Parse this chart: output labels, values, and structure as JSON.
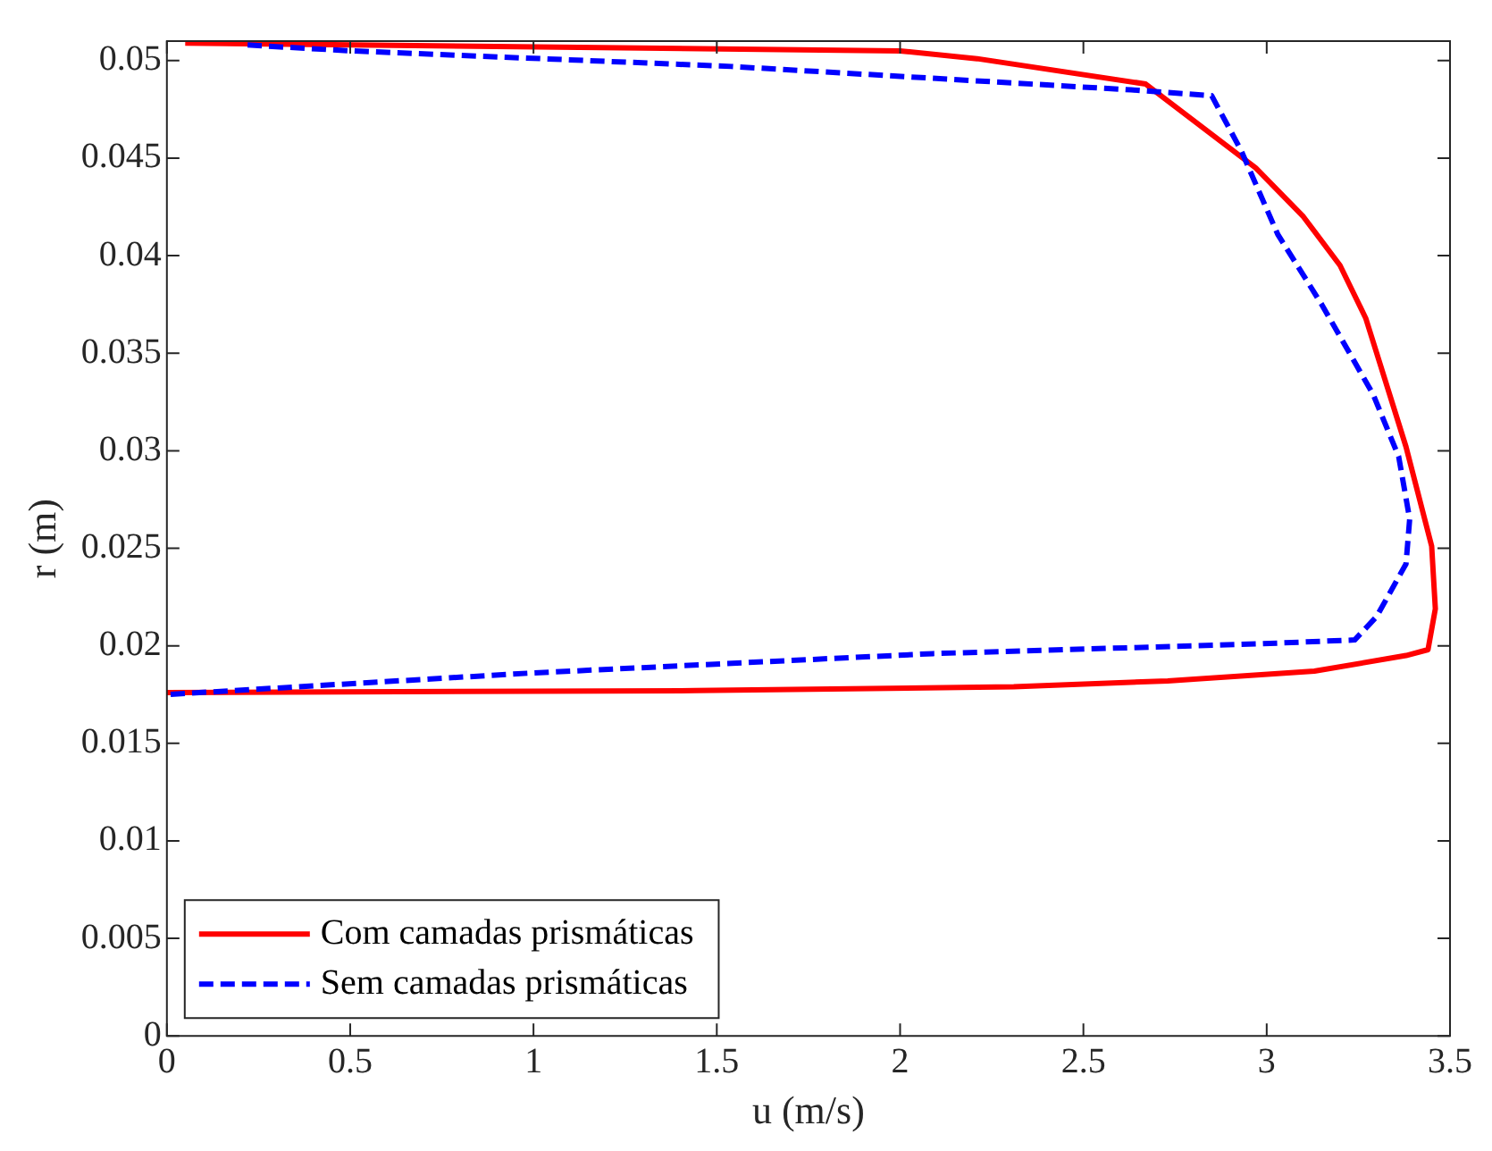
{
  "chart_data": {
    "type": "line",
    "xlabel": "u (m/s)",
    "ylabel": "r (m)",
    "xlim": [
      0,
      3.5
    ],
    "ylim": [
      0,
      0.051
    ],
    "xticks": [
      0,
      0.5,
      1,
      1.5,
      2,
      2.5,
      3,
      3.5
    ],
    "yticks": [
      0,
      0.005,
      0.01,
      0.015,
      0.02,
      0.025,
      0.03,
      0.035,
      0.04,
      0.045,
      0.05
    ],
    "grid": false,
    "legend": "bottom left",
    "series": [
      {
        "name": "Com camadas prismáticas",
        "color": "#ff0000",
        "line_style": "solid",
        "x": [
          0.05,
          2.0,
          2.21,
          2.67,
          2.97,
          3.1,
          3.2,
          3.27,
          3.38,
          3.45,
          3.46,
          3.44,
          3.38,
          3.13,
          2.73,
          2.31,
          1.44,
          0
        ],
        "values": [
          0.0509,
          0.0505,
          0.0501,
          0.0488,
          0.0445,
          0.042,
          0.0395,
          0.0368,
          0.0302,
          0.0251,
          0.0219,
          0.0198,
          0.0195,
          0.0187,
          0.0182,
          0.0179,
          0.0177,
          0.0176
        ]
      },
      {
        "name": "Sem camadas prismáticas",
        "color": "#0000ff",
        "line_style": "dashed",
        "x": [
          0.22,
          0.5,
          1.54,
          2.63,
          2.85,
          2.93,
          3.03,
          3.15,
          3.29,
          3.36,
          3.39,
          3.38,
          3.3,
          3.24,
          2.98,
          2.09,
          0.99,
          0
        ],
        "values": [
          0.0508,
          0.0505,
          0.0497,
          0.0485,
          0.0482,
          0.0454,
          0.0411,
          0.0375,
          0.0329,
          0.0297,
          0.0265,
          0.0242,
          0.0215,
          0.0203,
          0.0201,
          0.0196,
          0.0186,
          0.0175
        ]
      }
    ]
  }
}
